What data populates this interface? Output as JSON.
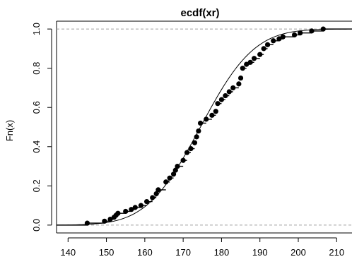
{
  "chart_data": {
    "type": "scatter",
    "title": "ecdf(xr)",
    "ylabel": "Fn(x)",
    "xlim": [
      137,
      214
    ],
    "ylim": [
      -0.04,
      1.04
    ],
    "x_ticks": [
      140,
      150,
      160,
      170,
      180,
      190,
      200,
      210
    ],
    "y_ticks": [
      0.0,
      0.2,
      0.4,
      0.6,
      0.8,
      1.0
    ],
    "reference_lines_y": [
      0,
      1
    ],
    "smooth_cdf": {
      "mean": 174.5,
      "sd": 11
    },
    "points": [
      [
        145,
        0.01
      ],
      [
        149.5,
        0.02
      ],
      [
        151,
        0.03
      ],
      [
        152,
        0.04
      ],
      [
        152.5,
        0.05
      ],
      [
        153,
        0.06
      ],
      [
        155,
        0.07
      ],
      [
        156.5,
        0.08
      ],
      [
        157.5,
        0.09
      ],
      [
        159,
        0.1
      ],
      [
        160.5,
        0.12
      ],
      [
        162,
        0.14
      ],
      [
        163,
        0.16
      ],
      [
        163.5,
        0.18
      ],
      [
        165.5,
        0.22
      ],
      [
        166.5,
        0.24
      ],
      [
        167.5,
        0.26
      ],
      [
        168,
        0.28
      ],
      [
        168.5,
        0.3
      ],
      [
        170,
        0.33
      ],
      [
        171,
        0.37
      ],
      [
        172,
        0.39
      ],
      [
        173,
        0.42
      ],
      [
        173.5,
        0.45
      ],
      [
        174,
        0.48
      ],
      [
        174.5,
        0.52
      ],
      [
        176,
        0.54
      ],
      [
        177.5,
        0.56
      ],
      [
        178.5,
        0.58
      ],
      [
        179,
        0.62
      ],
      [
        180,
        0.64
      ],
      [
        181,
        0.66
      ],
      [
        182,
        0.68
      ],
      [
        183,
        0.7
      ],
      [
        184.5,
        0.72
      ],
      [
        185,
        0.75
      ],
      [
        185.5,
        0.8
      ],
      [
        186.5,
        0.82
      ],
      [
        187.5,
        0.83
      ],
      [
        188.5,
        0.85
      ],
      [
        190,
        0.87
      ],
      [
        191,
        0.9
      ],
      [
        192,
        0.92
      ],
      [
        193.5,
        0.94
      ],
      [
        195,
        0.95
      ],
      [
        196,
        0.96
      ],
      [
        199,
        0.97
      ],
      [
        200.5,
        0.98
      ],
      [
        203.5,
        0.99
      ],
      [
        206.5,
        1.0
      ]
    ]
  }
}
